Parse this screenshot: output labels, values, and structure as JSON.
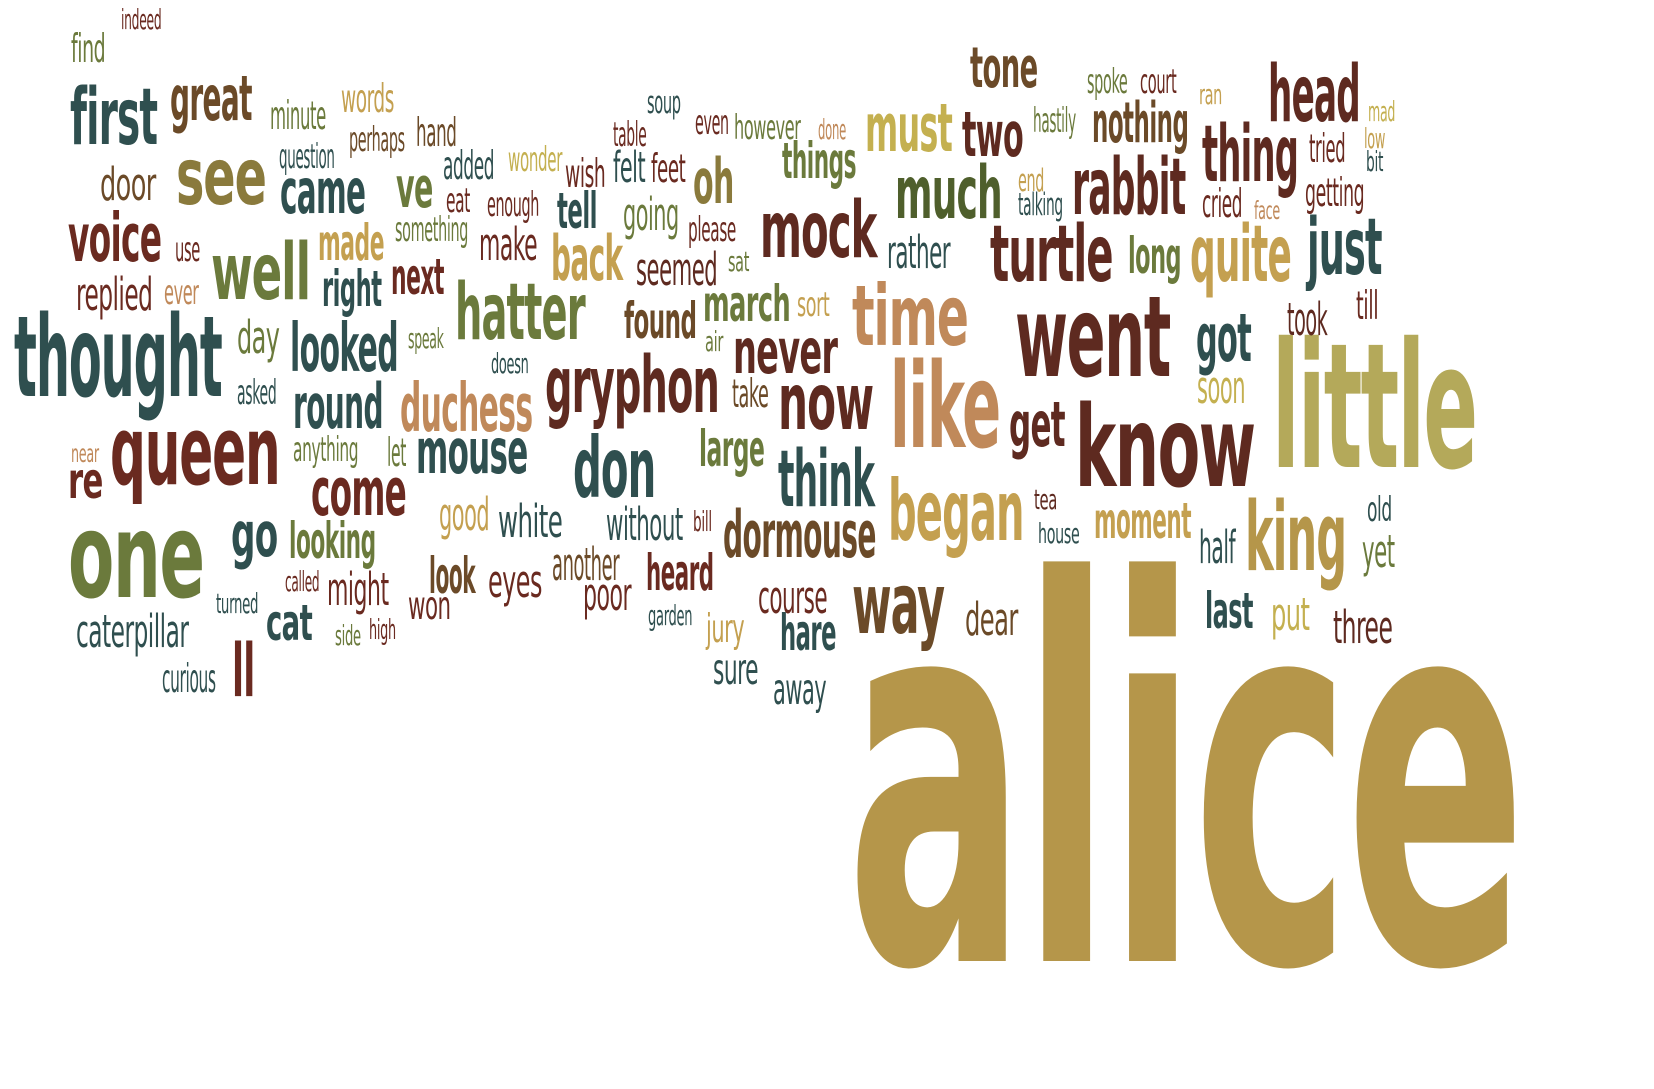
{
  "colors": {
    "olive-green": "#6b7a3c",
    "dark-teal": "#2f4f4f",
    "brown-red": "#6a2a20",
    "tan": "#b5964a",
    "dark-brown": "#6b4a28",
    "khaki": "#b4a95a",
    "golden-tan": "#c4924a"
  },
  "words": [
    {
      "text": "alice",
      "color": "#b5964a"
    },
    {
      "text": "little",
      "color": "#b4a95a"
    },
    {
      "text": "know",
      "color": "#5e2a20"
    },
    {
      "text": "went",
      "color": "#5e2a20"
    },
    {
      "text": "like",
      "color": "#c0895a"
    },
    {
      "text": "thought",
      "color": "#2f4f4f"
    },
    {
      "text": "one",
      "color": "#6b7a3c"
    },
    {
      "text": "queen",
      "color": "#6a2a20"
    },
    {
      "text": "time",
      "color": "#c0895a"
    },
    {
      "text": "king",
      "color": "#b5964a"
    },
    {
      "text": "began",
      "color": "#c4a050"
    },
    {
      "text": "way",
      "color": "#6b4a28"
    },
    {
      "text": "don",
      "color": "#2f4f4f"
    },
    {
      "text": "now",
      "color": "#5e2a20"
    },
    {
      "text": "well",
      "color": "#6b7a3c"
    },
    {
      "text": "mock",
      "color": "#5e2a20"
    },
    {
      "text": "turtle",
      "color": "#5e2a20"
    },
    {
      "text": "gryphon",
      "color": "#5e2a20"
    },
    {
      "text": "hatter",
      "color": "#6b7a3c"
    },
    {
      "text": "see",
      "color": "#8a7a3c"
    },
    {
      "text": "quite",
      "color": "#c4a050"
    },
    {
      "text": "much",
      "color": "#4f5f2c"
    },
    {
      "text": "think",
      "color": "#2f4f4f"
    },
    {
      "text": "head",
      "color": "#5e2a20"
    },
    {
      "text": "first",
      "color": "#2f4f4f"
    },
    {
      "text": "thing",
      "color": "#5e2a20"
    },
    {
      "text": "rabbit",
      "color": "#5e2a20"
    },
    {
      "text": "just",
      "color": "#2f4f4f"
    },
    {
      "text": "voice",
      "color": "#6a2a20"
    },
    {
      "text": "come",
      "color": "#6a2a20"
    },
    {
      "text": "dormouse",
      "color": "#6b4a28"
    },
    {
      "text": "great",
      "color": "#6b4a28"
    },
    {
      "text": "must",
      "color": "#c4b050"
    },
    {
      "text": "looked",
      "color": "#2f4f4f"
    },
    {
      "text": "duchess",
      "color": "#c0895a"
    },
    {
      "text": "came",
      "color": "#2f4f4f"
    },
    {
      "text": "got",
      "color": "#2f4f4f"
    },
    {
      "text": "mouse",
      "color": "#2f4f4f"
    },
    {
      "text": "go",
      "color": "#2f4f4f"
    },
    {
      "text": "two",
      "color": "#5e2a20"
    },
    {
      "text": "never",
      "color": "#5e2a20"
    },
    {
      "text": "round",
      "color": "#2f4f4f"
    },
    {
      "text": "back",
      "color": "#c4a050"
    },
    {
      "text": "tone",
      "color": "#6b4a28"
    },
    {
      "text": "nothing",
      "color": "#6b4a28"
    },
    {
      "text": "oh",
      "color": "#8a7a3c"
    },
    {
      "text": "get",
      "color": "#5e2a20"
    },
    {
      "text": "ve",
      "color": "#6b7a3c"
    },
    {
      "text": "things",
      "color": "#6b7a3c"
    },
    {
      "text": "march",
      "color": "#6b7a3c"
    },
    {
      "text": "found",
      "color": "#6b4a28"
    },
    {
      "text": "moment",
      "color": "#c4a050"
    },
    {
      "text": "looking",
      "color": "#6b7a3c"
    },
    {
      "text": "large",
      "color": "#6b7a3c"
    },
    {
      "text": "might",
      "color": "#6a2a20"
    },
    {
      "text": "white",
      "color": "#2f4f4f"
    },
    {
      "text": "heard",
      "color": "#6a2a20"
    },
    {
      "text": "look",
      "color": "#6b4a28"
    },
    {
      "text": "eyes",
      "color": "#6a2a20"
    },
    {
      "text": "hare",
      "color": "#2f4f4f"
    },
    {
      "text": "last",
      "color": "#2f4f4f"
    },
    {
      "text": "put",
      "color": "#c4b050"
    },
    {
      "text": "three",
      "color": "#5e2a20"
    },
    {
      "text": "dear",
      "color": "#6b4a28"
    },
    {
      "text": "caterpillar",
      "color": "#2f4f4f"
    },
    {
      "text": "cat",
      "color": "#2f4f4f"
    },
    {
      "text": "ll",
      "color": "#6a2a20"
    },
    {
      "text": "re",
      "color": "#6a2a20"
    },
    {
      "text": "right",
      "color": "#2f4f4f"
    },
    {
      "text": "next",
      "color": "#6a2a20"
    },
    {
      "text": "made",
      "color": "#c4a050"
    },
    {
      "text": "replied",
      "color": "#6a2a20"
    },
    {
      "text": "day",
      "color": "#6b7a3c"
    },
    {
      "text": "tell",
      "color": "#2f4f4f"
    },
    {
      "text": "make",
      "color": "#6a2a20"
    },
    {
      "text": "seemed",
      "color": "#5e2a20"
    },
    {
      "text": "going",
      "color": "#6b7a3c"
    },
    {
      "text": "long",
      "color": "#6b7a3c"
    },
    {
      "text": "rather",
      "color": "#2f4f4f"
    },
    {
      "text": "without",
      "color": "#2f4f4f"
    },
    {
      "text": "door",
      "color": "#6b4a28"
    },
    {
      "text": "poor",
      "color": "#6a2a20"
    },
    {
      "text": "good",
      "color": "#c4a050"
    },
    {
      "text": "another",
      "color": "#6b4a28"
    },
    {
      "text": "course",
      "color": "#6a2a20"
    },
    {
      "text": "away",
      "color": "#2f4f4f"
    },
    {
      "text": "sure",
      "color": "#2f4f4f"
    },
    {
      "text": "won",
      "color": "#6a2a20"
    },
    {
      "text": "half",
      "color": "#2f4f4f"
    },
    {
      "text": "took",
      "color": "#5e2a20"
    },
    {
      "text": "soon",
      "color": "#c4b050"
    },
    {
      "text": "yet",
      "color": "#6b7a3c"
    },
    {
      "text": "wish",
      "color": "#6a2a20"
    },
    {
      "text": "felt",
      "color": "#2f4f4f"
    },
    {
      "text": "feet",
      "color": "#6a2a20"
    },
    {
      "text": "minute",
      "color": "#6b7a3c"
    },
    {
      "text": "words",
      "color": "#c4a050"
    },
    {
      "text": "added",
      "color": "#2f4f4f"
    },
    {
      "text": "hand",
      "color": "#6b4a28"
    },
    {
      "text": "tried",
      "color": "#6a2a20"
    },
    {
      "text": "getting",
      "color": "#6a2a20"
    },
    {
      "text": "jury",
      "color": "#c4a050"
    },
    {
      "text": "curious",
      "color": "#2f4f4f"
    },
    {
      "text": "take",
      "color": "#6b4a28"
    },
    {
      "text": "anything",
      "color": "#6b7a3c"
    },
    {
      "text": "cried",
      "color": "#6a2a20"
    },
    {
      "text": "find",
      "color": "#6b7a3c"
    },
    {
      "text": "however",
      "color": "#6b7a3c"
    },
    {
      "text": "please",
      "color": "#6a2a20"
    },
    {
      "text": "let",
      "color": "#6b7a3c"
    },
    {
      "text": "perhaps",
      "color": "#6b4a28"
    },
    {
      "text": "enough",
      "color": "#6a2a20"
    },
    {
      "text": "question",
      "color": "#2f4f4f"
    },
    {
      "text": "table",
      "color": "#6a2a20"
    },
    {
      "text": "something",
      "color": "#6b7a3c"
    },
    {
      "text": "asked",
      "color": "#2f4f4f"
    },
    {
      "text": "sort",
      "color": "#c4a050"
    },
    {
      "text": "till",
      "color": "#6a2a20"
    },
    {
      "text": "old",
      "color": "#2f4f4f"
    },
    {
      "text": "court",
      "color": "#6a2a20"
    },
    {
      "text": "spoke",
      "color": "#6b7a3c"
    },
    {
      "text": "hastily",
      "color": "#6b7a3c"
    },
    {
      "text": "even",
      "color": "#6a2a20"
    },
    {
      "text": "wonder",
      "color": "#c4b050"
    },
    {
      "text": "ever",
      "color": "#c0895a"
    },
    {
      "text": "eat",
      "color": "#6a2a20"
    },
    {
      "text": "use",
      "color": "#6a2a20"
    },
    {
      "text": "speak",
      "color": "#6b7a3c"
    },
    {
      "text": "doesn",
      "color": "#2f4f4f"
    },
    {
      "text": "air",
      "color": "#6b7a3c"
    },
    {
      "text": "sat",
      "color": "#6b7a3c"
    },
    {
      "text": "soup",
      "color": "#2f4f4f"
    },
    {
      "text": "done",
      "color": "#c0895a"
    },
    {
      "text": "end",
      "color": "#c4a050"
    },
    {
      "text": "talking",
      "color": "#2f4f4f"
    },
    {
      "text": "mad",
      "color": "#c4b050"
    },
    {
      "text": "low",
      "color": "#c4a050"
    },
    {
      "text": "bit",
      "color": "#2f4f4f"
    },
    {
      "text": "ran",
      "color": "#c4a050"
    },
    {
      "text": "face",
      "color": "#c0895a"
    },
    {
      "text": "tea",
      "color": "#5e2a20"
    },
    {
      "text": "house",
      "color": "#2f4f4f"
    },
    {
      "text": "bill",
      "color": "#6a2a20"
    },
    {
      "text": "garden",
      "color": "#2f4f4f"
    },
    {
      "text": "called",
      "color": "#6a2a20"
    },
    {
      "text": "turned",
      "color": "#2f4f4f"
    },
    {
      "text": "side",
      "color": "#6b7a3c"
    },
    {
      "text": "high",
      "color": "#6a2a20"
    },
    {
      "text": "near",
      "color": "#c0895a"
    },
    {
      "text": "indeed",
      "color": "#6a2a20"
    }
  ]
}
